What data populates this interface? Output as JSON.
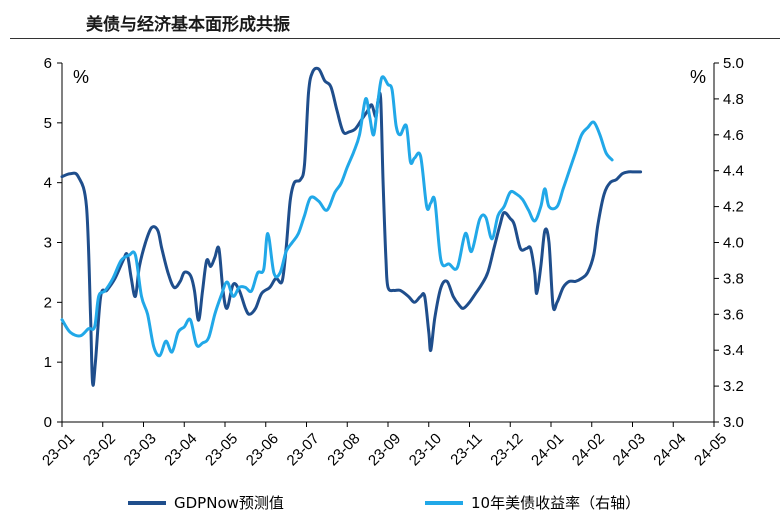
{
  "title": "美债与经济基本面形成共振",
  "chart_data": {
    "type": "line",
    "left_unit": "%",
    "right_unit": "%",
    "left_axis": {
      "min": 0,
      "max": 6,
      "ticks": [
        0,
        1,
        2,
        3,
        4,
        5,
        6
      ]
    },
    "right_axis": {
      "min": 3.0,
      "max": 5.0,
      "ticks": [
        "3.0",
        "3.2",
        "3.4",
        "3.6",
        "3.8",
        "4.0",
        "4.2",
        "4.4",
        "4.6",
        "4.8",
        "5.0"
      ]
    },
    "x_ticks": [
      "23-01",
      "23-02",
      "23-03",
      "23-04",
      "23-05",
      "23-06",
      "23-07",
      "23-08",
      "23-09",
      "23-10",
      "23-11",
      "23-12",
      "24-01",
      "24-02",
      "24-03",
      "24-04",
      "24-05"
    ],
    "grid": false,
    "legend_position": "bottom",
    "series": [
      {
        "name": "GDPNow预测值",
        "axis": "left",
        "color": "#1f4e8c",
        "points": [
          [
            0.0,
            4.1
          ],
          [
            0.2,
            4.15
          ],
          [
            0.4,
            4.1
          ],
          [
            0.6,
            3.6
          ],
          [
            0.7,
            1.8
          ],
          [
            0.75,
            0.65
          ],
          [
            0.82,
            1.0
          ],
          [
            0.95,
            2.1
          ],
          [
            1.1,
            2.2
          ],
          [
            1.3,
            2.4
          ],
          [
            1.5,
            2.7
          ],
          [
            1.6,
            2.8
          ],
          [
            1.7,
            2.4
          ],
          [
            1.8,
            2.1
          ],
          [
            1.9,
            2.6
          ],
          [
            2.05,
            3.0
          ],
          [
            2.2,
            3.25
          ],
          [
            2.35,
            3.2
          ],
          [
            2.45,
            2.9
          ],
          [
            2.6,
            2.5
          ],
          [
            2.75,
            2.25
          ],
          [
            2.9,
            2.35
          ],
          [
            3.0,
            2.5
          ],
          [
            3.15,
            2.45
          ],
          [
            3.25,
            2.2
          ],
          [
            3.35,
            1.7
          ],
          [
            3.45,
            2.2
          ],
          [
            3.55,
            2.7
          ],
          [
            3.65,
            2.6
          ],
          [
            3.75,
            2.75
          ],
          [
            3.85,
            2.9
          ],
          [
            3.95,
            2.2
          ],
          [
            4.05,
            1.9
          ],
          [
            4.2,
            2.3
          ],
          [
            4.35,
            2.2
          ],
          [
            4.5,
            1.9
          ],
          [
            4.6,
            1.8
          ],
          [
            4.75,
            1.9
          ],
          [
            4.9,
            2.15
          ],
          [
            5.1,
            2.25
          ],
          [
            5.25,
            2.4
          ],
          [
            5.4,
            2.35
          ],
          [
            5.5,
            2.9
          ],
          [
            5.6,
            3.7
          ],
          [
            5.7,
            4.0
          ],
          [
            5.85,
            4.05
          ],
          [
            5.95,
            4.3
          ],
          [
            6.05,
            5.5
          ],
          [
            6.15,
            5.85
          ],
          [
            6.3,
            5.9
          ],
          [
            6.45,
            5.7
          ],
          [
            6.6,
            5.6
          ],
          [
            6.75,
            5.2
          ],
          [
            6.9,
            4.85
          ],
          [
            7.05,
            4.85
          ],
          [
            7.2,
            4.9
          ],
          [
            7.35,
            5.05
          ],
          [
            7.5,
            5.2
          ],
          [
            7.6,
            5.3
          ],
          [
            7.7,
            5.1
          ],
          [
            7.75,
            5.35
          ],
          [
            7.82,
            5.4
          ],
          [
            7.88,
            4.0
          ],
          [
            7.95,
            2.7
          ],
          [
            8.0,
            2.25
          ],
          [
            8.15,
            2.2
          ],
          [
            8.3,
            2.2
          ],
          [
            8.5,
            2.1
          ],
          [
            8.65,
            2.0
          ],
          [
            8.8,
            2.1
          ],
          [
            8.9,
            2.1
          ],
          [
            9.0,
            1.5
          ],
          [
            9.05,
            1.2
          ],
          [
            9.15,
            1.75
          ],
          [
            9.3,
            2.25
          ],
          [
            9.45,
            2.35
          ],
          [
            9.6,
            2.1
          ],
          [
            9.75,
            1.95
          ],
          [
            9.85,
            1.9
          ],
          [
            10.0,
            2.0
          ],
          [
            10.15,
            2.15
          ],
          [
            10.3,
            2.3
          ],
          [
            10.45,
            2.5
          ],
          [
            10.6,
            2.9
          ],
          [
            10.75,
            3.3
          ],
          [
            10.85,
            3.5
          ],
          [
            11.0,
            3.4
          ],
          [
            11.1,
            3.3
          ],
          [
            11.25,
            2.9
          ],
          [
            11.4,
            2.9
          ],
          [
            11.5,
            2.9
          ],
          [
            11.6,
            2.5
          ],
          [
            11.65,
            2.15
          ],
          [
            11.75,
            2.6
          ],
          [
            11.85,
            3.2
          ],
          [
            11.95,
            3.0
          ],
          [
            12.05,
            1.95
          ],
          [
            12.15,
            2.0
          ],
          [
            12.3,
            2.25
          ],
          [
            12.45,
            2.35
          ],
          [
            12.6,
            2.35
          ],
          [
            12.75,
            2.4
          ],
          [
            12.9,
            2.5
          ],
          [
            13.05,
            2.8
          ],
          [
            13.15,
            3.3
          ],
          [
            13.3,
            3.8
          ],
          [
            13.45,
            4.0
          ],
          [
            13.6,
            4.05
          ],
          [
            13.75,
            4.15
          ],
          [
            13.9,
            4.18
          ],
          [
            14.05,
            4.18
          ],
          [
            14.2,
            4.18
          ]
        ]
      },
      {
        "name": "10年美债收益率（右轴）",
        "axis": "right",
        "color": "#21a8e8",
        "points": [
          [
            0.0,
            3.57
          ],
          [
            0.2,
            3.5
          ],
          [
            0.45,
            3.48
          ],
          [
            0.65,
            3.52
          ],
          [
            0.8,
            3.53
          ],
          [
            0.9,
            3.7
          ],
          [
            1.05,
            3.73
          ],
          [
            1.25,
            3.8
          ],
          [
            1.45,
            3.9
          ],
          [
            1.65,
            3.93
          ],
          [
            1.8,
            3.93
          ],
          [
            1.95,
            3.7
          ],
          [
            2.1,
            3.6
          ],
          [
            2.25,
            3.42
          ],
          [
            2.4,
            3.37
          ],
          [
            2.55,
            3.45
          ],
          [
            2.7,
            3.39
          ],
          [
            2.85,
            3.5
          ],
          [
            3.0,
            3.53
          ],
          [
            3.15,
            3.57
          ],
          [
            3.3,
            3.43
          ],
          [
            3.45,
            3.44
          ],
          [
            3.6,
            3.47
          ],
          [
            3.75,
            3.6
          ],
          [
            3.9,
            3.7
          ],
          [
            4.05,
            3.78
          ],
          [
            4.2,
            3.7
          ],
          [
            4.35,
            3.75
          ],
          [
            4.5,
            3.75
          ],
          [
            4.65,
            3.73
          ],
          [
            4.8,
            3.83
          ],
          [
            4.95,
            3.85
          ],
          [
            5.05,
            4.05
          ],
          [
            5.2,
            3.83
          ],
          [
            5.35,
            3.83
          ],
          [
            5.5,
            3.95
          ],
          [
            5.65,
            4.0
          ],
          [
            5.8,
            4.05
          ],
          [
            5.95,
            4.15
          ],
          [
            6.1,
            4.25
          ],
          [
            6.3,
            4.23
          ],
          [
            6.5,
            4.18
          ],
          [
            6.7,
            4.28
          ],
          [
            6.85,
            4.33
          ],
          [
            7.0,
            4.42
          ],
          [
            7.15,
            4.5
          ],
          [
            7.3,
            4.6
          ],
          [
            7.45,
            4.8
          ],
          [
            7.55,
            4.7
          ],
          [
            7.65,
            4.6
          ],
          [
            7.75,
            4.78
          ],
          [
            7.85,
            4.92
          ],
          [
            8.0,
            4.88
          ],
          [
            8.1,
            4.85
          ],
          [
            8.2,
            4.65
          ],
          [
            8.3,
            4.6
          ],
          [
            8.45,
            4.65
          ],
          [
            8.55,
            4.45
          ],
          [
            8.65,
            4.47
          ],
          [
            8.8,
            4.48
          ],
          [
            8.95,
            4.2
          ],
          [
            9.05,
            4.22
          ],
          [
            9.15,
            4.23
          ],
          [
            9.3,
            3.9
          ],
          [
            9.5,
            3.88
          ],
          [
            9.7,
            3.86
          ],
          [
            9.9,
            4.05
          ],
          [
            10.05,
            3.95
          ],
          [
            10.25,
            4.13
          ],
          [
            10.4,
            4.14
          ],
          [
            10.55,
            4.02
          ],
          [
            10.7,
            4.15
          ],
          [
            10.85,
            4.2
          ],
          [
            11.0,
            4.28
          ],
          [
            11.15,
            4.27
          ],
          [
            11.3,
            4.24
          ],
          [
            11.45,
            4.18
          ],
          [
            11.6,
            4.12
          ],
          [
            11.75,
            4.2
          ],
          [
            11.85,
            4.3
          ],
          [
            11.95,
            4.2
          ],
          [
            12.15,
            4.2
          ],
          [
            12.3,
            4.3
          ],
          [
            12.45,
            4.4
          ],
          [
            12.6,
            4.5
          ],
          [
            12.75,
            4.6
          ],
          [
            12.9,
            4.64
          ],
          [
            13.05,
            4.67
          ],
          [
            13.2,
            4.6
          ],
          [
            13.35,
            4.5
          ],
          [
            13.5,
            4.46
          ]
        ]
      }
    ]
  }
}
